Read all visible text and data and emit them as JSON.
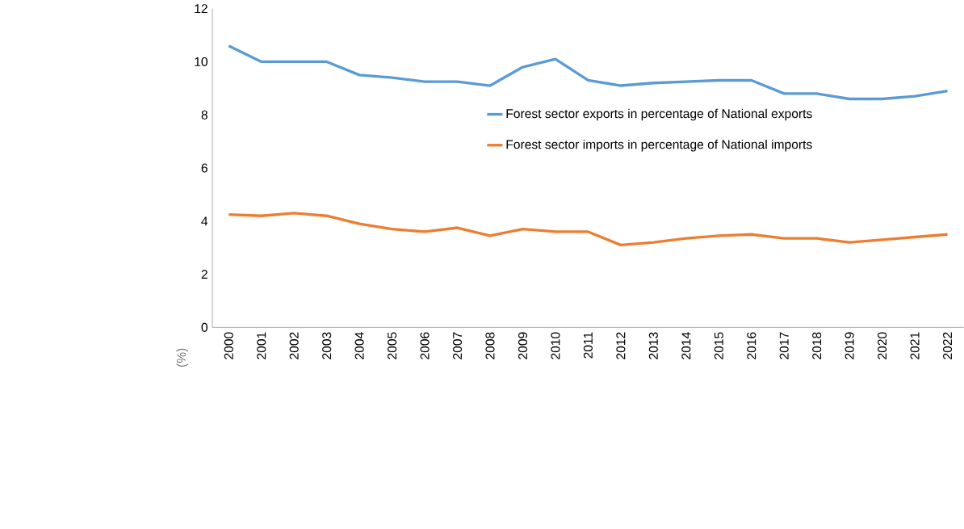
{
  "chart_data": {
    "type": "line",
    "ylabel": "(%)",
    "categories": [
      "2000",
      "2001",
      "2002",
      "2003",
      "2004",
      "2005",
      "2006",
      "2007",
      "2008",
      "2009",
      "2010",
      "2011",
      "2012",
      "2013",
      "2014",
      "2015",
      "2016",
      "2017",
      "2018",
      "2019",
      "2020",
      "2021",
      "2022"
    ],
    "series": [
      {
        "name": "Forest sector exports in percentage of National exports",
        "color": "#5b9bd5",
        "values": [
          10.6,
          10.0,
          10.0,
          10.0,
          9.5,
          9.4,
          9.25,
          9.25,
          9.1,
          9.8,
          10.1,
          9.3,
          9.1,
          9.2,
          9.25,
          9.3,
          9.3,
          8.8,
          8.8,
          8.6,
          8.6,
          8.7,
          8.9
        ]
      },
      {
        "name": "Forest sector imports in percentage of National imports",
        "color": "#ed7d31",
        "values": [
          4.25,
          4.2,
          4.3,
          4.2,
          3.9,
          3.7,
          3.6,
          3.75,
          3.45,
          3.7,
          3.6,
          3.6,
          3.1,
          3.2,
          3.35,
          3.45,
          3.5,
          3.35,
          3.35,
          3.2,
          3.3,
          3.4,
          3.5
        ]
      }
    ],
    "ylim": [
      0,
      12
    ],
    "yticks": [
      0,
      2,
      4,
      6,
      8,
      10,
      12
    ],
    "grid": false,
    "legend": "right",
    "marker": "none",
    "line_style": "solid"
  }
}
